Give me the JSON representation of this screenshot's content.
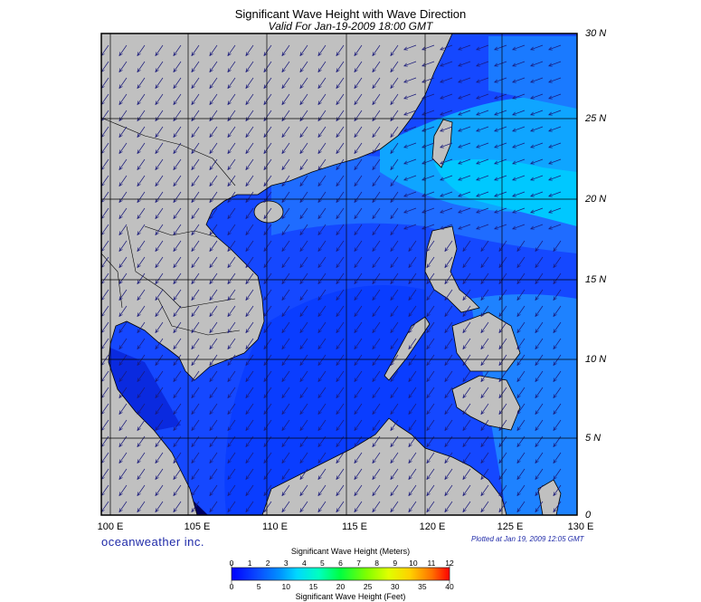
{
  "header": {
    "title": "Significant Wave Height with Wave Direction",
    "subtitle": "Valid For Jan-19-2009 18:00 GMT"
  },
  "map": {
    "lon_labels": [
      "100 E",
      "105 E",
      "110 E",
      "115 E",
      "120 E",
      "125 E",
      "130 E"
    ],
    "lat_labels": [
      "30 N",
      "25 N",
      "20 N",
      "15 N",
      "10 N",
      "5 N",
      "0"
    ],
    "lon_range": [
      99,
      130
    ],
    "lat_range": [
      0,
      30
    ],
    "land_color": "#c0c0c0",
    "coast_color": "#000000",
    "arrow_color": "#1a1a7a",
    "wave_direction": "from northeast"
  },
  "footer": {
    "brand": "oceanweather inc.",
    "plotted": "Plotted at Jan 19, 2009 12:05 GMT"
  },
  "colorbar": {
    "top_title": "Significant Wave Height (Meters)",
    "bottom_title": "Significant Wave Height (Feet)",
    "meter_ticks": [
      "0",
      "1",
      "2",
      "3",
      "4",
      "5",
      "6",
      "7",
      "8",
      "9",
      "10",
      "11",
      "12"
    ],
    "feet_ticks": [
      "0",
      "5",
      "10",
      "15",
      "20",
      "25",
      "30",
      "35",
      "40"
    ],
    "colors": [
      "#0000ff",
      "#0a4bff",
      "#0080ff",
      "#00c0ff",
      "#00e8e8",
      "#00ffb0",
      "#00ff40",
      "#60ff00",
      "#c8ff00",
      "#ffff00",
      "#ffc000",
      "#ff7000",
      "#ff0000"
    ]
  }
}
